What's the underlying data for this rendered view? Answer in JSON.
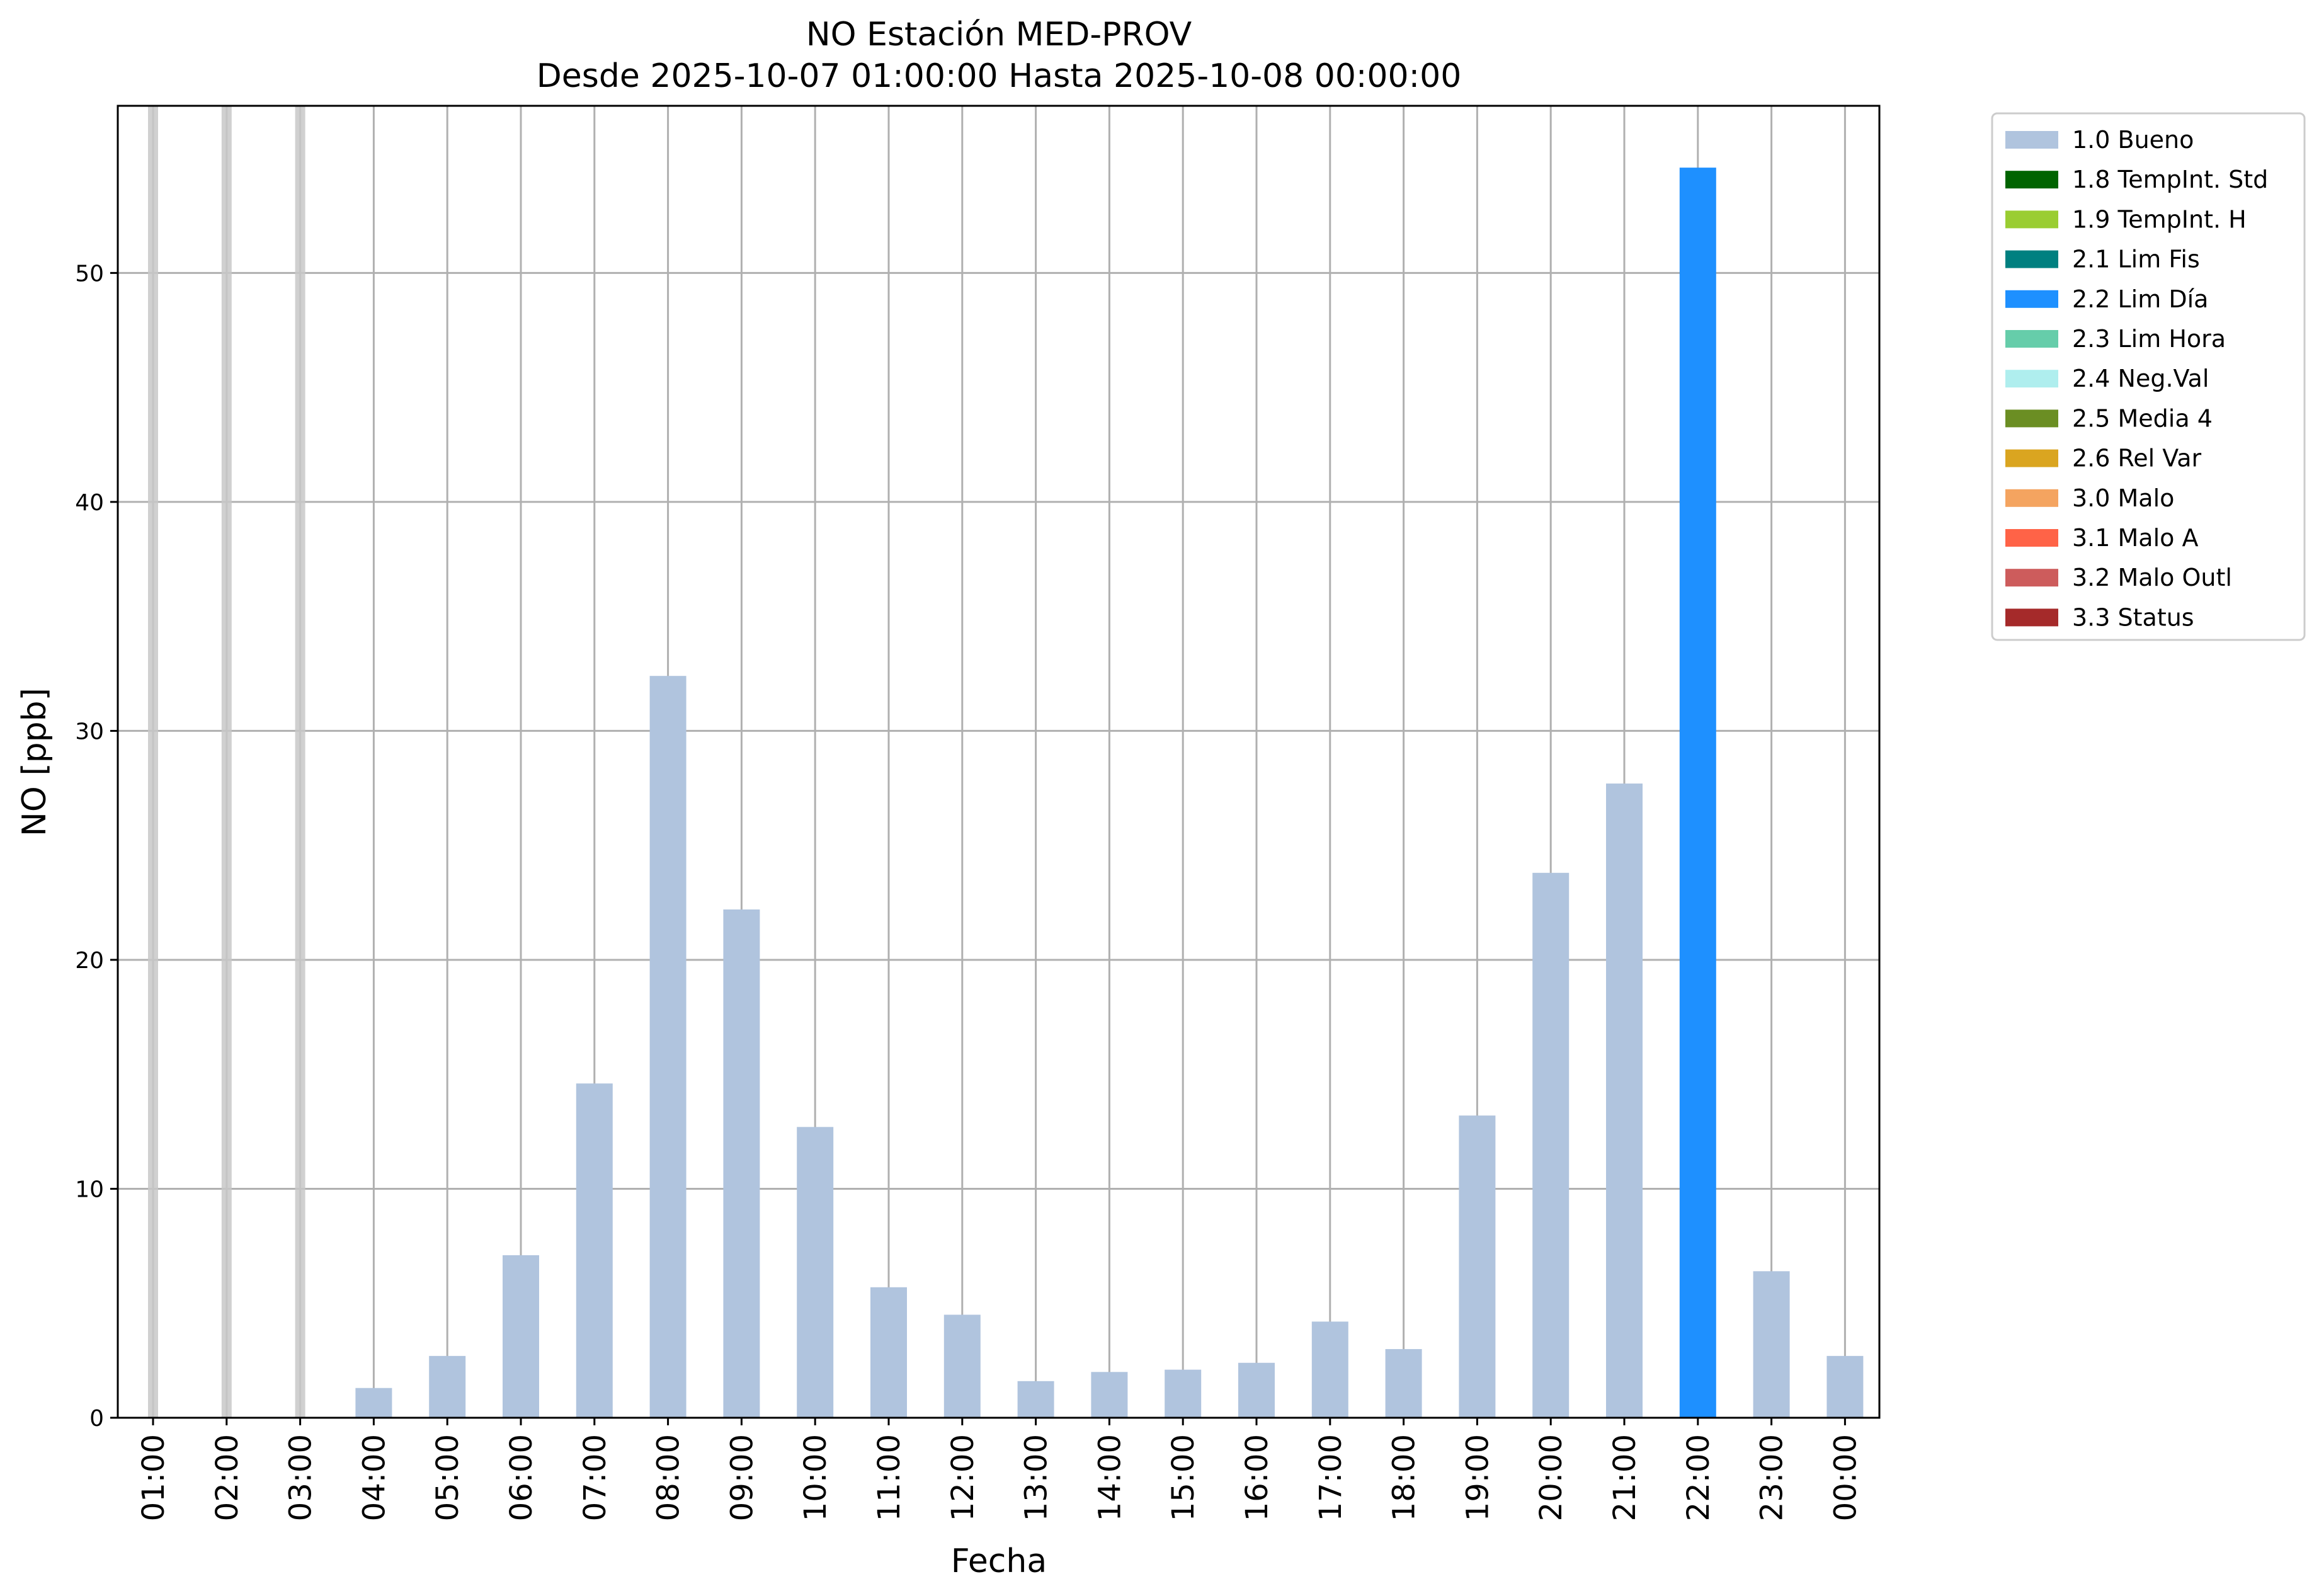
{
  "chart_data": {
    "type": "bar",
    "title": "NO Estación MED-PROV",
    "subtitle": "Desde 2025-10-07 01:00:00 Hasta 2025-10-08 00:00:00",
    "xlabel": "Fecha",
    "ylabel": "NO [ppb]",
    "ylim": [
      0,
      57.3
    ],
    "yticks": [
      0,
      10,
      20,
      30,
      40,
      50
    ],
    "grid": true,
    "legend_position": "outside-top-right",
    "categories": [
      "01:00",
      "02:00",
      "03:00",
      "04:00",
      "05:00",
      "06:00",
      "07:00",
      "08:00",
      "09:00",
      "10:00",
      "11:00",
      "12:00",
      "13:00",
      "14:00",
      "15:00",
      "16:00",
      "17:00",
      "18:00",
      "19:00",
      "20:00",
      "21:00",
      "22:00",
      "23:00",
      "00:00"
    ],
    "values": [
      null,
      null,
      null,
      1.3,
      2.7,
      7.1,
      14.6,
      32.4,
      22.2,
      12.7,
      5.7,
      4.5,
      1.6,
      2.0,
      2.1,
      2.4,
      4.2,
      3.0,
      13.2,
      23.8,
      27.7,
      54.6,
      6.4,
      2.7
    ],
    "flags": [
      "missing",
      "missing",
      "missing",
      "1.0 Bueno",
      "1.0 Bueno",
      "1.0 Bueno",
      "1.0 Bueno",
      "1.0 Bueno",
      "1.0 Bueno",
      "1.0 Bueno",
      "1.0 Bueno",
      "1.0 Bueno",
      "1.0 Bueno",
      "1.0 Bueno",
      "1.0 Bueno",
      "1.0 Bueno",
      "1.0 Bueno",
      "1.0 Bueno",
      "1.0 Bueno",
      "1.0 Bueno",
      "1.0 Bueno",
      "2.2 Lim Día",
      "1.0 Bueno",
      "1.0 Bueno"
    ],
    "missing_marker_color": "#c8c8c8",
    "legend": [
      {
        "label": "1.0 Bueno",
        "color": "#b0c4de"
      },
      {
        "label": "1.8 TempInt. Std",
        "color": "#006400"
      },
      {
        "label": "1.9 TempInt. H",
        "color": "#9acd32"
      },
      {
        "label": "2.1 Lim Fis",
        "color": "#008080"
      },
      {
        "label": "2.2 Lim Día",
        "color": "#1e90ff"
      },
      {
        "label": "2.3 Lim Hora",
        "color": "#66cdaa"
      },
      {
        "label": "2.4 Neg.Val",
        "color": "#afeeee"
      },
      {
        "label": "2.5 Media 4",
        "color": "#6b8e23"
      },
      {
        "label": "2.6 Rel Var",
        "color": "#daa520"
      },
      {
        "label": "3.0 Malo",
        "color": "#f4a460"
      },
      {
        "label": "3.1 Malo A",
        "color": "#ff6347"
      },
      {
        "label": "3.2 Malo Outl",
        "color": "#cd5c5c"
      },
      {
        "label": "3.3 Status",
        "color": "#a52a2a"
      }
    ]
  }
}
